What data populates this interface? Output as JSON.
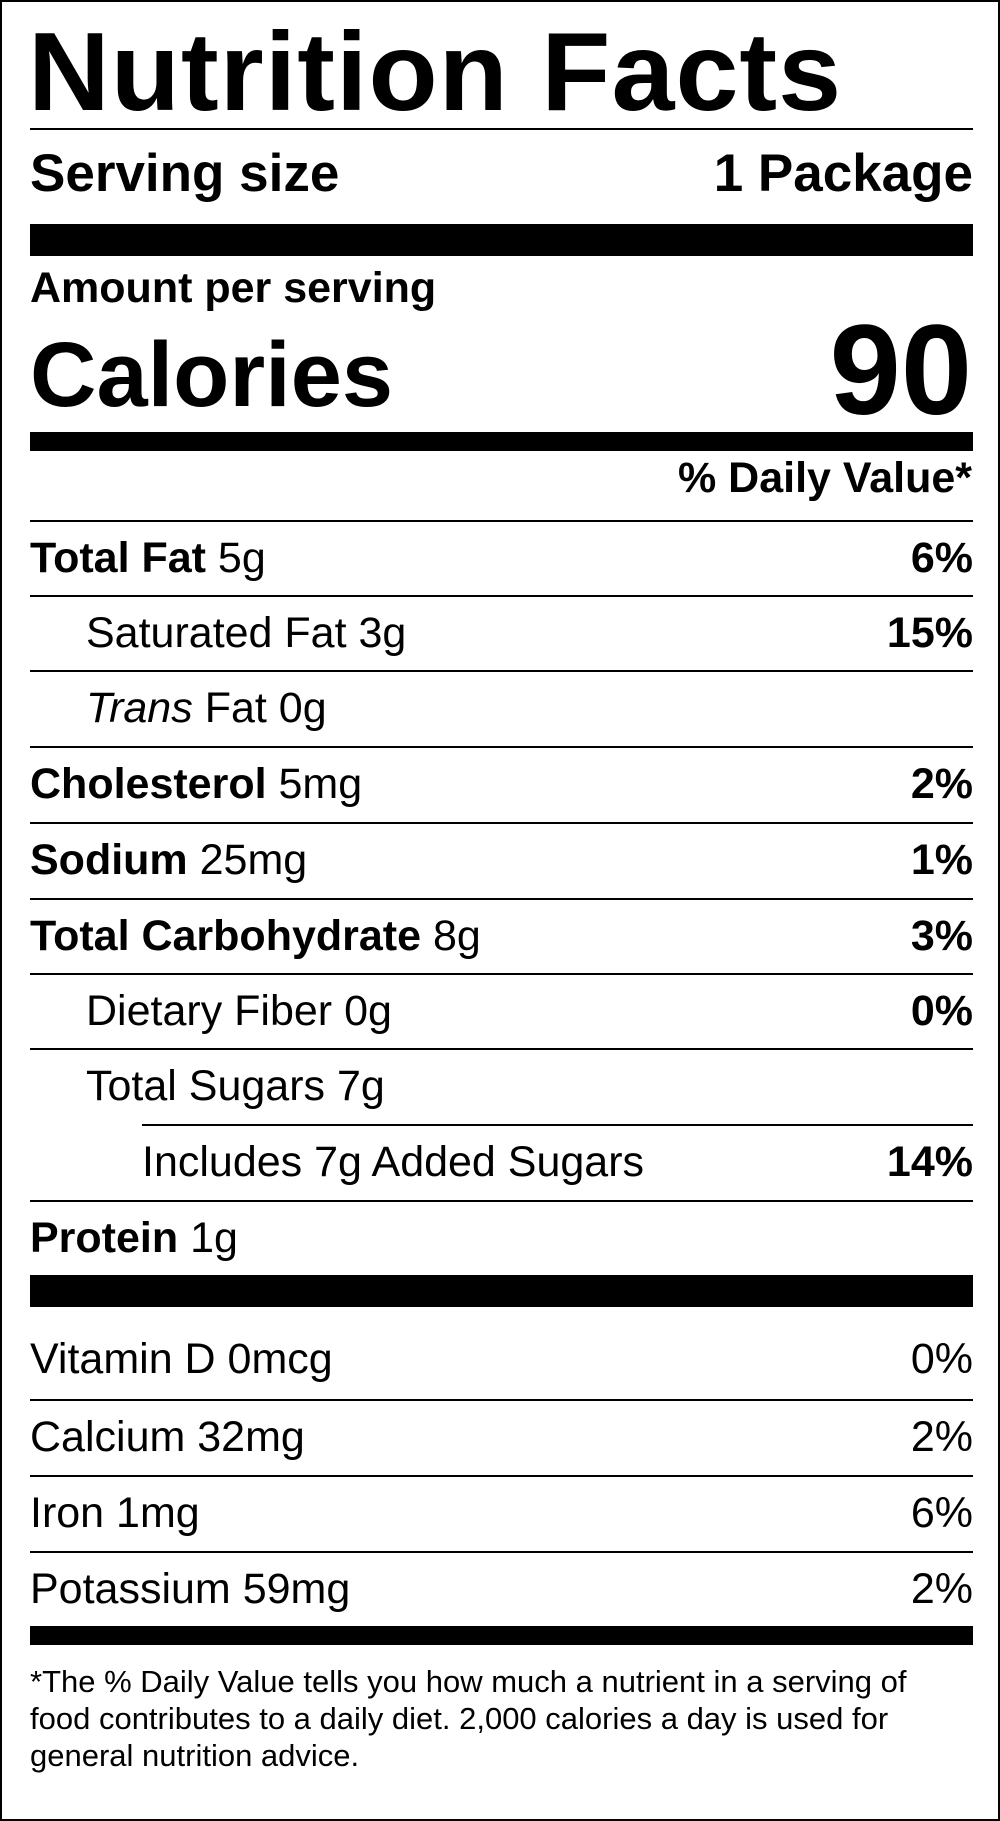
{
  "title": "Nutrition Facts",
  "serving": {
    "label": "Serving size",
    "value": "1 Package"
  },
  "amount_per_serving": "Amount per serving",
  "calories": {
    "label": "Calories",
    "value": "90"
  },
  "daily_value_header": "% Daily Value*",
  "nutrients": [
    {
      "name": "Total Fat",
      "amount": "5g",
      "dv": "6%"
    },
    {
      "name": "Saturated Fat",
      "amount": "3g",
      "dv": "15%"
    },
    {
      "name_italic": "Trans",
      "name": "Fat",
      "amount": "0g",
      "dv": ""
    },
    {
      "name": "Cholesterol",
      "amount": "5mg",
      "dv": "2%"
    },
    {
      "name": "Sodium",
      "amount": "25mg",
      "dv": "1%"
    },
    {
      "name": "Total Carbohydrate",
      "amount": "8g",
      "dv": "3%"
    },
    {
      "name": "Dietary Fiber",
      "amount": "0g",
      "dv": "0%"
    },
    {
      "name": "Total Sugars",
      "amount": "7g",
      "dv": ""
    },
    {
      "text": "Includes 7g Added Sugars",
      "dv": "14%"
    },
    {
      "name": "Protein",
      "amount": "1g",
      "dv": ""
    }
  ],
  "vitamins": [
    {
      "text": "Vitamin D 0mcg",
      "dv": "0%"
    },
    {
      "text": "Calcium 32mg",
      "dv": "2%"
    },
    {
      "text": "Iron 1mg",
      "dv": "6%"
    },
    {
      "text": "Potassium 59mg",
      "dv": "2%"
    }
  ],
  "footnote": "*The % Daily Value tells you how much a nutrient in a serving of food contributes to a daily diet. 2,000 calories a day is used for general nutrition advice."
}
